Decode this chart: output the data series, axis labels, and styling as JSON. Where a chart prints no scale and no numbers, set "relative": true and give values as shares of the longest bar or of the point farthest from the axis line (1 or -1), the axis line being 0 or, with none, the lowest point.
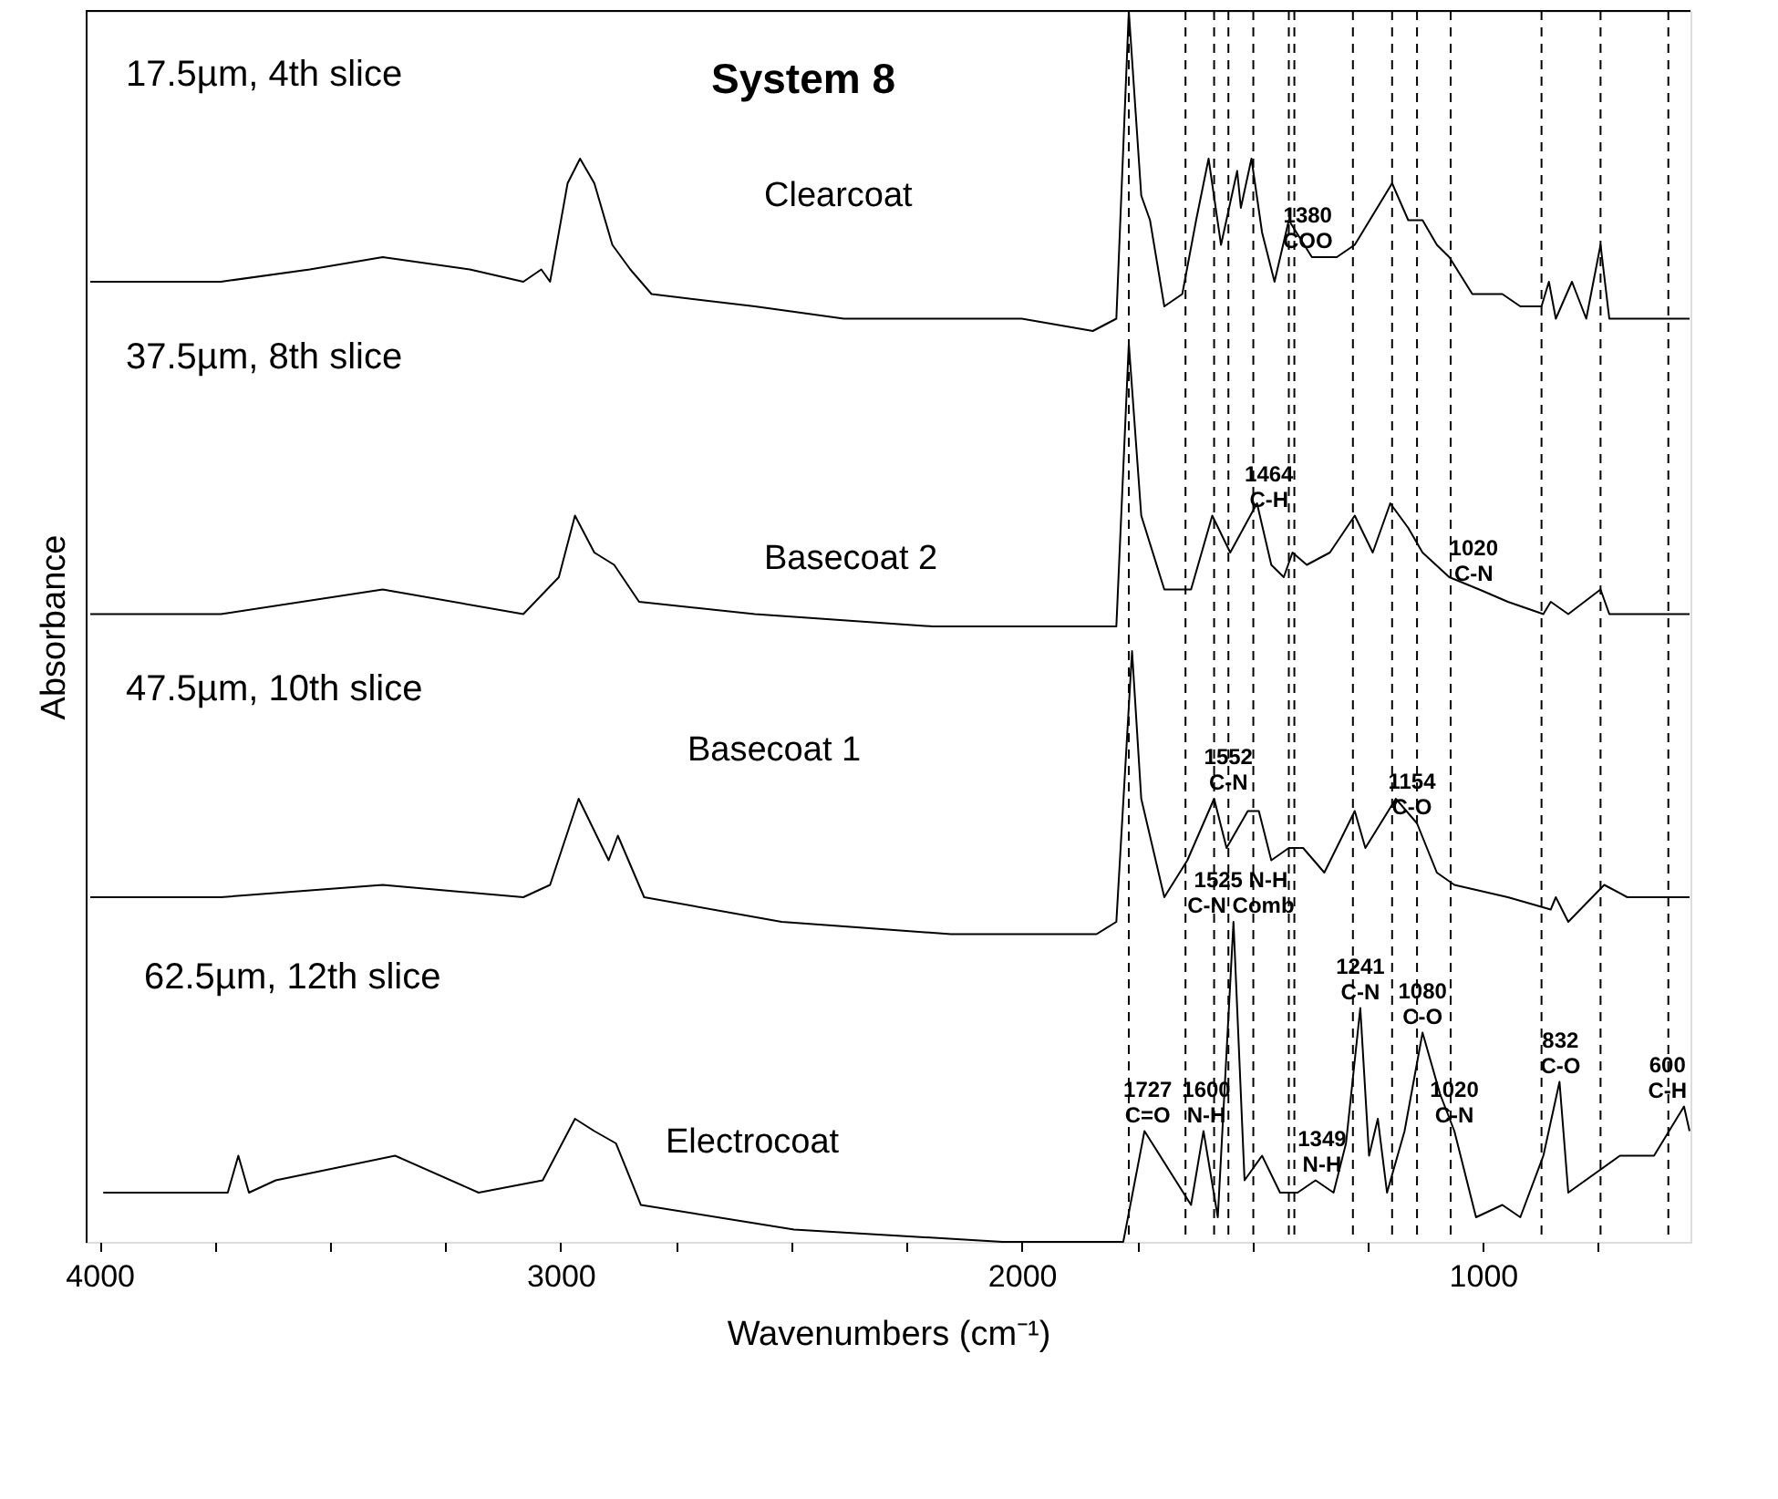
{
  "chart_data": {
    "type": "line",
    "title": "System 8",
    "xlabel": "Wavenumbers (cm⁻¹)",
    "ylabel": "Absorbance",
    "relative": true,
    "xlim": [
      4030,
      550
    ],
    "xticks": [
      4000,
      {
        "value": 3750,
        "label": null
      },
      {
        "value": 3500,
        "label": null
      },
      {
        "value": 3250,
        "label": null
      },
      3000,
      {
        "value": 2750,
        "label": null
      },
      {
        "value": 2500,
        "label": null
      },
      {
        "value": 2250,
        "label": null
      },
      2000,
      {
        "value": 1750,
        "label": null
      },
      {
        "value": 1500,
        "label": null
      },
      {
        "value": 1250,
        "label": null
      },
      1000,
      {
        "value": 750,
        "label": null
      }
    ],
    "tick_labels": "x",
    "grid": false,
    "legend": false,
    "marker": "none",
    "line_style": "solid",
    "series": [
      {
        "name": "Clearcoat",
        "color": "#000000",
        "x": [
          4020,
          3737,
          3544,
          3386,
          3197,
          3081,
          3042,
          3023,
          2985,
          2958,
          2927,
          2888,
          2849,
          2803,
          2579,
          2386,
          2000,
          1846,
          1795,
          1768,
          1741,
          1722,
          1691,
          1652,
          1622,
          1595,
          1568,
          1533,
          1525,
          1502,
          1479,
          1452,
          1421,
          1371,
          1317,
          1278,
          1197,
          1162,
          1131,
          1100,
          1073,
          1023,
          958,
          919,
          873,
          857,
          842,
          807,
          776,
          745,
          726,
          552
        ],
        "values": [
          0.78,
          0.78,
          0.79,
          0.8,
          0.79,
          0.78,
          0.79,
          0.78,
          0.86,
          0.88,
          0.86,
          0.81,
          0.79,
          0.77,
          0.76,
          0.75,
          0.75,
          0.74,
          0.75,
          1.0,
          0.85,
          0.83,
          0.76,
          0.77,
          0.83,
          0.88,
          0.81,
          0.87,
          0.84,
          0.88,
          0.82,
          0.78,
          0.83,
          0.8,
          0.8,
          0.81,
          0.86,
          0.83,
          0.83,
          0.81,
          0.8,
          0.77,
          0.77,
          0.76,
          0.76,
          0.78,
          0.75,
          0.78,
          0.75,
          0.81,
          0.75,
          0.75
        ]
      },
      {
        "name": "Basecoat 2",
        "color": "#000000",
        "x": [
          4020,
          3737,
          3386,
          3081,
          3004,
          2969,
          2927,
          2884,
          2830,
          2579,
          2193,
          1795,
          1768,
          1741,
          1691,
          1633,
          1587,
          1548,
          1490,
          1459,
          1432,
          1413,
          1382,
          1332,
          1278,
          1239,
          1201,
          1162,
          1131,
          1073,
          1008,
          946,
          869,
          853,
          815,
          745,
          726,
          552
        ],
        "values": [
          0.51,
          0.51,
          0.53,
          0.51,
          0.54,
          0.59,
          0.56,
          0.55,
          0.52,
          0.51,
          0.5,
          0.5,
          0.73,
          0.59,
          0.53,
          0.53,
          0.59,
          0.56,
          0.6,
          0.55,
          0.54,
          0.56,
          0.55,
          0.56,
          0.59,
          0.56,
          0.6,
          0.58,
          0.56,
          0.54,
          0.53,
          0.52,
          0.51,
          0.52,
          0.51,
          0.53,
          0.51,
          0.51
        ]
      },
      {
        "name": "Basecoat 1",
        "color": "#000000",
        "x": [
          4020,
          3737,
          3386,
          3081,
          3023,
          2961,
          2896,
          2876,
          2819,
          2521,
          2154,
          1838,
          1795,
          1761,
          1741,
          1691,
          1641,
          1583,
          1556,
          1510,
          1486,
          1459,
          1421,
          1390,
          1344,
          1278,
          1255,
          1189,
          1143,
          1100,
          1062,
          946,
          853,
          842,
          815,
          737,
          687,
          552
        ],
        "values": [
          0.28,
          0.28,
          0.29,
          0.28,
          0.29,
          0.36,
          0.31,
          0.33,
          0.28,
          0.26,
          0.25,
          0.25,
          0.26,
          0.48,
          0.36,
          0.28,
          0.31,
          0.36,
          0.32,
          0.35,
          0.35,
          0.31,
          0.32,
          0.32,
          0.3,
          0.35,
          0.32,
          0.36,
          0.34,
          0.3,
          0.29,
          0.28,
          0.27,
          0.28,
          0.26,
          0.29,
          0.28,
          0.28
        ]
      },
      {
        "name": "Electrocoat",
        "color": "#000000",
        "x": [
          3992,
          3722,
          3699,
          3676,
          3618,
          3359,
          3178,
          3039,
          2969,
          2927,
          2880,
          2826,
          2494,
          2042,
          1780,
          1734,
          1633,
          1606,
          1575,
          1541,
          1517,
          1479,
          1440,
          1402,
          1363,
          1324,
          1297,
          1266,
          1247,
          1228,
          1208,
          1170,
          1131,
          1093,
          1062,
          1015,
          958,
          919,
          869,
          834,
          815,
          703,
          629,
          564,
          552
        ],
        "values": [
          0.04,
          0.04,
          0.07,
          0.04,
          0.05,
          0.07,
          0.04,
          0.05,
          0.1,
          0.09,
          0.08,
          0.03,
          0.01,
          0,
          0,
          0.09,
          0.03,
          0.09,
          0.02,
          0.26,
          0.05,
          0.07,
          0.04,
          0.04,
          0.05,
          0.04,
          0.08,
          0.19,
          0.07,
          0.1,
          0.04,
          0.09,
          0.17,
          0.12,
          0.09,
          0.02,
          0.03,
          0.02,
          0.07,
          0.13,
          0.04,
          0.07,
          0.07,
          0.11,
          0.09
        ]
      }
    ],
    "ref_lines": [
      {
        "axis": "x",
        "value": 1768,
        "color": "#000000",
        "line_style": "dashed"
      },
      {
        "axis": "x",
        "value": 1645,
        "color": "#000000",
        "line_style": "dashed"
      },
      {
        "axis": "x",
        "value": 1583,
        "color": "#000000",
        "line_style": "dashed"
      },
      {
        "axis": "x",
        "value": 1552,
        "color": "#000000",
        "line_style": "dashed"
      },
      {
        "axis": "x",
        "value": 1498,
        "color": "#000000",
        "line_style": "dashed"
      },
      {
        "axis": "x",
        "value": 1421,
        "color": "#000000",
        "line_style": "dashed"
      },
      {
        "axis": "x",
        "value": 1409,
        "color": "#000000",
        "line_style": "dashed"
      },
      {
        "axis": "x",
        "value": 1282,
        "color": "#000000",
        "line_style": "dashed"
      },
      {
        "axis": "x",
        "value": 1197,
        "color": "#000000",
        "line_style": "dashed"
      },
      {
        "axis": "x",
        "value": 1143,
        "color": "#000000",
        "line_style": "dashed"
      },
      {
        "axis": "x",
        "value": 1070,
        "color": "#000000",
        "line_style": "dashed"
      },
      {
        "axis": "x",
        "value": 873,
        "color": "#000000",
        "line_style": "dashed"
      },
      {
        "axis": "x",
        "value": 745,
        "color": "#000000",
        "line_style": "dashed"
      },
      {
        "axis": "x",
        "value": 598,
        "color": "#000000",
        "line_style": "dashed"
      }
    ],
    "annotations": [
      "17.5µm, 4th slice",
      "37.5µm, 8th slice",
      "47.5µm, 10th slice",
      "62.5µm, 12th slice",
      {
        "text": "1380\nCOO",
        "x": 1380,
        "y": 0.8
      },
      {
        "text": "1464\nC-H",
        "x": 1464,
        "y": 0.59
      },
      {
        "text": "1020\nC-N",
        "x": 1020,
        "y": 0.53
      },
      {
        "text": "1552\nC-N",
        "x": 1552,
        "y": 0.36
      },
      {
        "text": "1154\nC-O",
        "x": 1154,
        "y": 0.34
      },
      {
        "text": "1727\nC=O",
        "x": 1727,
        "y": 0.09
      },
      {
        "text": "1600\nN-H",
        "x": 1600,
        "y": 0.09
      },
      {
        "text": "1525 N-H\nC-N Comb",
        "x": 1525,
        "y": 0.26
      },
      {
        "text": "1349\nN-H",
        "x": 1349,
        "y": 0.05
      },
      {
        "text": "1241\nC-N",
        "x": 1266,
        "y": 0.19
      },
      {
        "text": "1080\nC-O",
        "x": 1131,
        "y": 0.17
      },
      {
        "text": "1020\nC-N",
        "x": 1062,
        "y": 0.09
      },
      {
        "text": "832\nC-O",
        "x": 832,
        "y": 0.13
      },
      {
        "text": "600\nC-H",
        "x": 600,
        "y": 0.11
      }
    ]
  }
}
